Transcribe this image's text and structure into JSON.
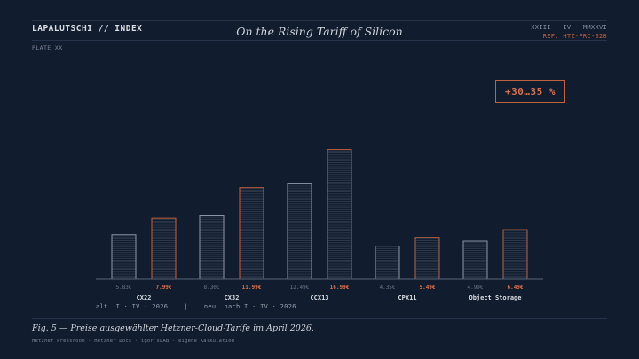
{
  "header": {
    "brand": "LAPALUTSCHI // INDEX",
    "title": "On the Rising Tariff of Silicon",
    "date": "XXIII · IV · MMXXVI",
    "ref": "REF. HTZ-PRC-020"
  },
  "plate": "PLATE XX",
  "badge": "+30…35 %",
  "colors": {
    "background": "#111c2e",
    "old": "#8e97a8",
    "new": "#c0623f",
    "axis": "#5a6478"
  },
  "chart_data": {
    "type": "bar",
    "categories": [
      "CX22",
      "CX32",
      "CCX13",
      "CPX11",
      "Object Storage"
    ],
    "series": [
      {
        "name": "alt  I · IV · 2026",
        "values": [
          5.83,
          8.3,
          12.49,
          4.35,
          4.99
        ],
        "labels": [
          "5.83€",
          "8.30€",
          "12.49€",
          "4.35€",
          "4.99€"
        ]
      },
      {
        "name": "neu  nach I · IV · 2026",
        "values": [
          7.99,
          11.99,
          16.99,
          5.49,
          6.49
        ],
        "labels": [
          "7.99€",
          "11.99€",
          "16.99€",
          "5.49€",
          "6.49€"
        ]
      }
    ],
    "ylim": [
      0,
      19.5
    ],
    "grid": false,
    "legend": "bottom-left"
  },
  "legend_text": "alt  I · IV · 2026    |    neu  nach I · IV · 2026",
  "caption": "Fig. 5 — Preise ausgewählter Hetzner-Cloud-Tarife im April 2026.",
  "sources": "Hetzner Pressroom · Hetzner Docs · igor'sLAB · eigene Kalkulation"
}
